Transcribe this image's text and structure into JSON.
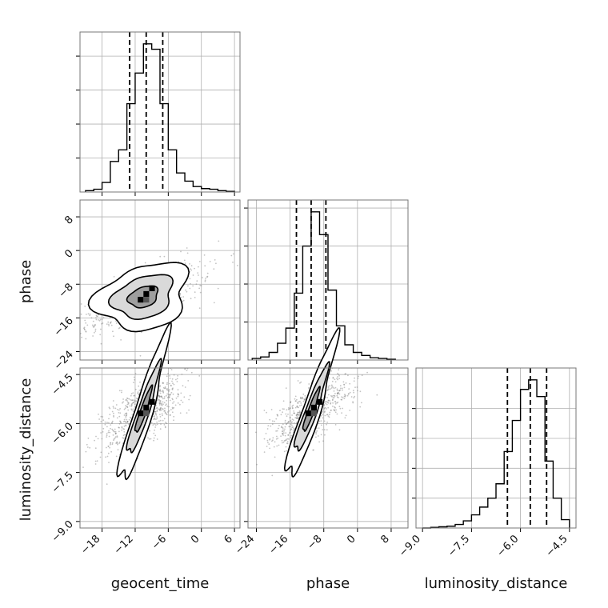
{
  "chart_data": {
    "type": "corner",
    "parameters": [
      "geocent_time",
      "phase",
      "luminosity_distance"
    ],
    "axis_labels": {
      "bottom": [
        "geocent_time",
        "phase",
        "luminosity_distance"
      ],
      "left": [
        "phase",
        "luminosity_distance"
      ]
    },
    "ranges": {
      "geocent_time": [
        -22,
        7
      ],
      "phase": [
        -26,
        12
      ],
      "luminosity_distance": [
        -9.2,
        -4.3
      ]
    },
    "ticks": {
      "geocent_time": [
        "-18",
        "-12",
        "-6",
        "0",
        "6"
      ],
      "phase": [
        "-24",
        "-16",
        "-8",
        "0",
        "8"
      ],
      "luminosity_distance": [
        "-9.0",
        "-7.5",
        "-6.0",
        "-4.5"
      ]
    },
    "quantiles": {
      "geocent_time": [
        -13.0,
        -10.0,
        -7.0
      ],
      "phase": [
        -14.5,
        -11.0,
        -7.5
      ],
      "luminosity_distance": [
        -6.4,
        -5.7,
        -5.2
      ]
    },
    "histograms": {
      "geocent_time": {
        "edges": [
          -21,
          -19.5,
          -18,
          -16.5,
          -15,
          -13.5,
          -12,
          -10.5,
          -9,
          -7.5,
          -6,
          -4.5,
          -3,
          -1.5,
          0,
          1.5,
          3,
          4.5,
          6
        ],
        "counts": [
          2,
          4,
          14,
          45,
          62,
          130,
          175,
          218,
          210,
          130,
          62,
          28,
          16,
          8,
          5,
          4,
          2,
          1
        ]
      },
      "phase": {
        "edges": [
          -25,
          -23,
          -21,
          -19,
          -17,
          -15,
          -13,
          -11,
          -9,
          -7,
          -5,
          -3,
          -1,
          1,
          3,
          5,
          7,
          9
        ],
        "counts": [
          2,
          4,
          10,
          22,
          42,
          88,
          150,
          195,
          165,
          92,
          45,
          20,
          10,
          6,
          3,
          2,
          1
        ]
      },
      "luminosity_distance": {
        "edges": [
          -9.0,
          -8.75,
          -8.5,
          -8.25,
          -8.0,
          -7.75,
          -7.5,
          -7.25,
          -7.0,
          -6.75,
          -6.5,
          -6.25,
          -6.0,
          -5.75,
          -5.5,
          -5.25,
          -5.0,
          -4.75,
          -4.5
        ],
        "counts": [
          0,
          1,
          2,
          3,
          6,
          12,
          22,
          35,
          50,
          74,
          128,
          180,
          232,
          248,
          220,
          112,
          50,
          14
        ]
      }
    },
    "contours": {
      "phase_vs_geocent_time": {
        "center": [
          -10.5,
          -11.0
        ],
        "levels": [
          [
            3.0,
            2.2
          ],
          [
            6.0,
            4.5
          ],
          [
            9.0,
            7.0
          ]
        ],
        "angle_deg": 40
      },
      "luminosity_distance_vs_geocent_time": {
        "center": [
          -10.5,
          -5.6
        ],
        "levels": [
          [
            2.6,
            0.28
          ],
          [
            5.0,
            0.55
          ],
          [
            7.5,
            0.9
          ]
        ],
        "angle_deg": 55
      },
      "luminosity_distance_vs_phase": {
        "center": [
          -11.0,
          -5.6
        ],
        "levels": [
          [
            3.0,
            0.28
          ],
          [
            6.0,
            0.55
          ],
          [
            9.0,
            0.9
          ]
        ],
        "angle_deg": 50
      }
    },
    "grid": true,
    "colors": {
      "line": "#000000",
      "grid": "#b0b0b0",
      "points": "#7a7a7a"
    }
  }
}
